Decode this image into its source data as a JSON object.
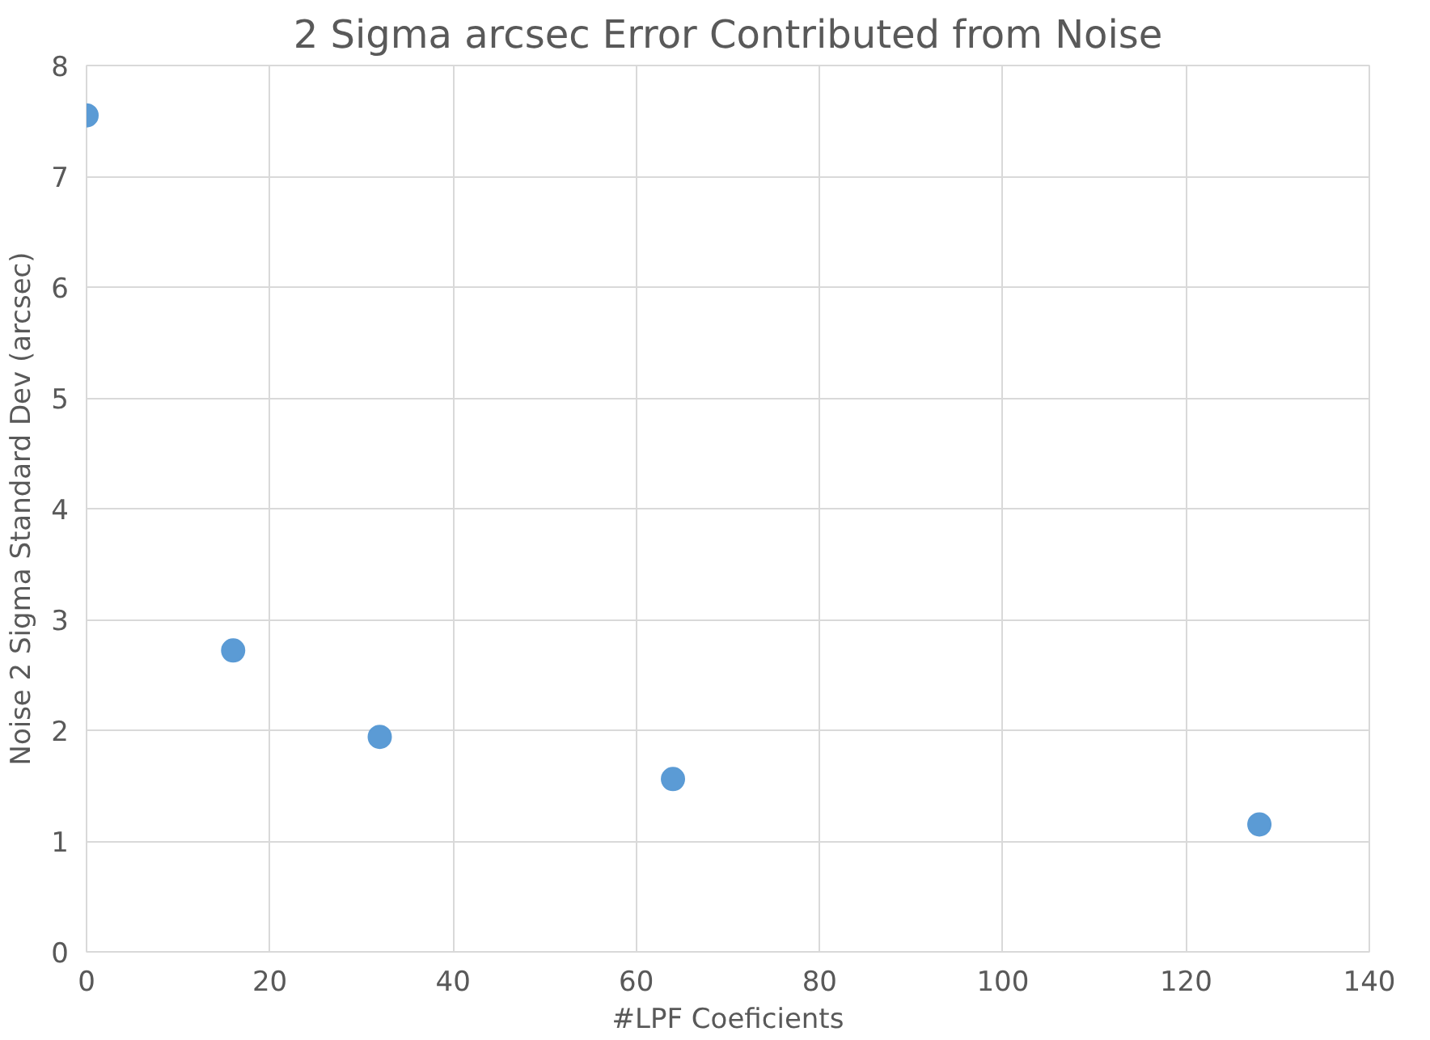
{
  "chart_data": {
    "type": "scatter",
    "title": "2 Sigma arcsec Error Contributed from Noise",
    "xlabel": "#LPF Coeficients",
    "ylabel": "Noise 2 Sigma Standard Dev (arcsec)",
    "x": [
      0,
      16,
      32,
      64,
      128
    ],
    "series": [
      {
        "color": "#5b9bd5",
        "values": [
          7.55,
          2.72,
          1.94,
          1.56,
          1.15
        ]
      }
    ],
    "xlim": [
      0,
      140
    ],
    "ylim": [
      0,
      8
    ],
    "xticks": [
      0,
      20,
      40,
      60,
      80,
      100,
      120,
      140
    ],
    "yticks": [
      0,
      1,
      2,
      3,
      4,
      5,
      6,
      7,
      8
    ],
    "grid": true,
    "marker": "circle"
  }
}
